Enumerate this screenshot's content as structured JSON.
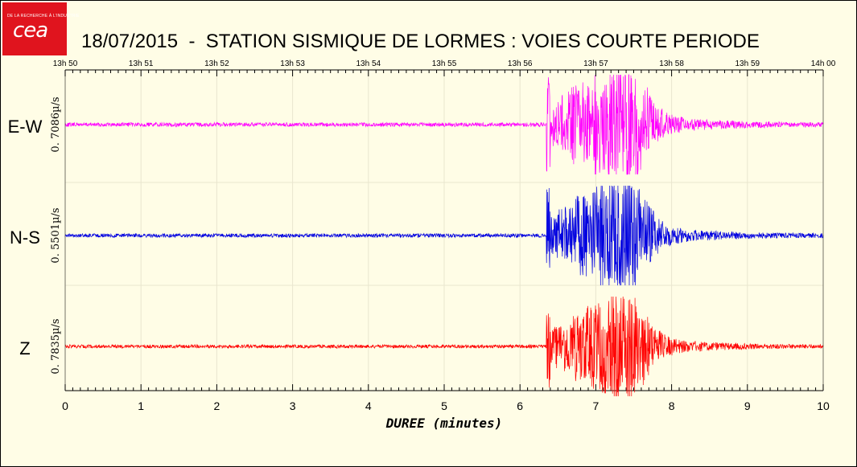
{
  "logo": {
    "text": "cea",
    "tagline": "DE LA RECHERCHE À L'INDUSTRIE"
  },
  "title": "18/07/2015  -  STATION SISMIQUE DE LORMES : VOIES COURTE PERIODE",
  "chart_data": {
    "type": "line",
    "title": "18/07/2015  -  STATION SISMIQUE DE LORMES : VOIES COURTE PERIODE",
    "xlabel": "DUREE (minutes)",
    "xlim": [
      0,
      10
    ],
    "x_ticks": [
      "0",
      "1",
      "2",
      "3",
      "4",
      "5",
      "6",
      "7",
      "8",
      "9",
      "10"
    ],
    "top_axis_ticks": [
      "13h 50",
      "13h 51",
      "13h 52",
      "13h 53",
      "13h 54",
      "13h 55",
      "13h 56",
      "13h 57",
      "13h 58",
      "13h 59",
      "14h 00"
    ],
    "grid": true,
    "event_onset_minutes": 6.35,
    "series": [
      {
        "name": "E-W",
        "scale_label": "0. 7086µ/s",
        "color": "#ff00ff"
      },
      {
        "name": "N-S",
        "scale_label": "0. 5501µ/s",
        "color": "#0000e0"
      },
      {
        "name": "Z",
        "scale_label": "0. 7835µ/s",
        "color": "#ff0000"
      }
    ]
  }
}
